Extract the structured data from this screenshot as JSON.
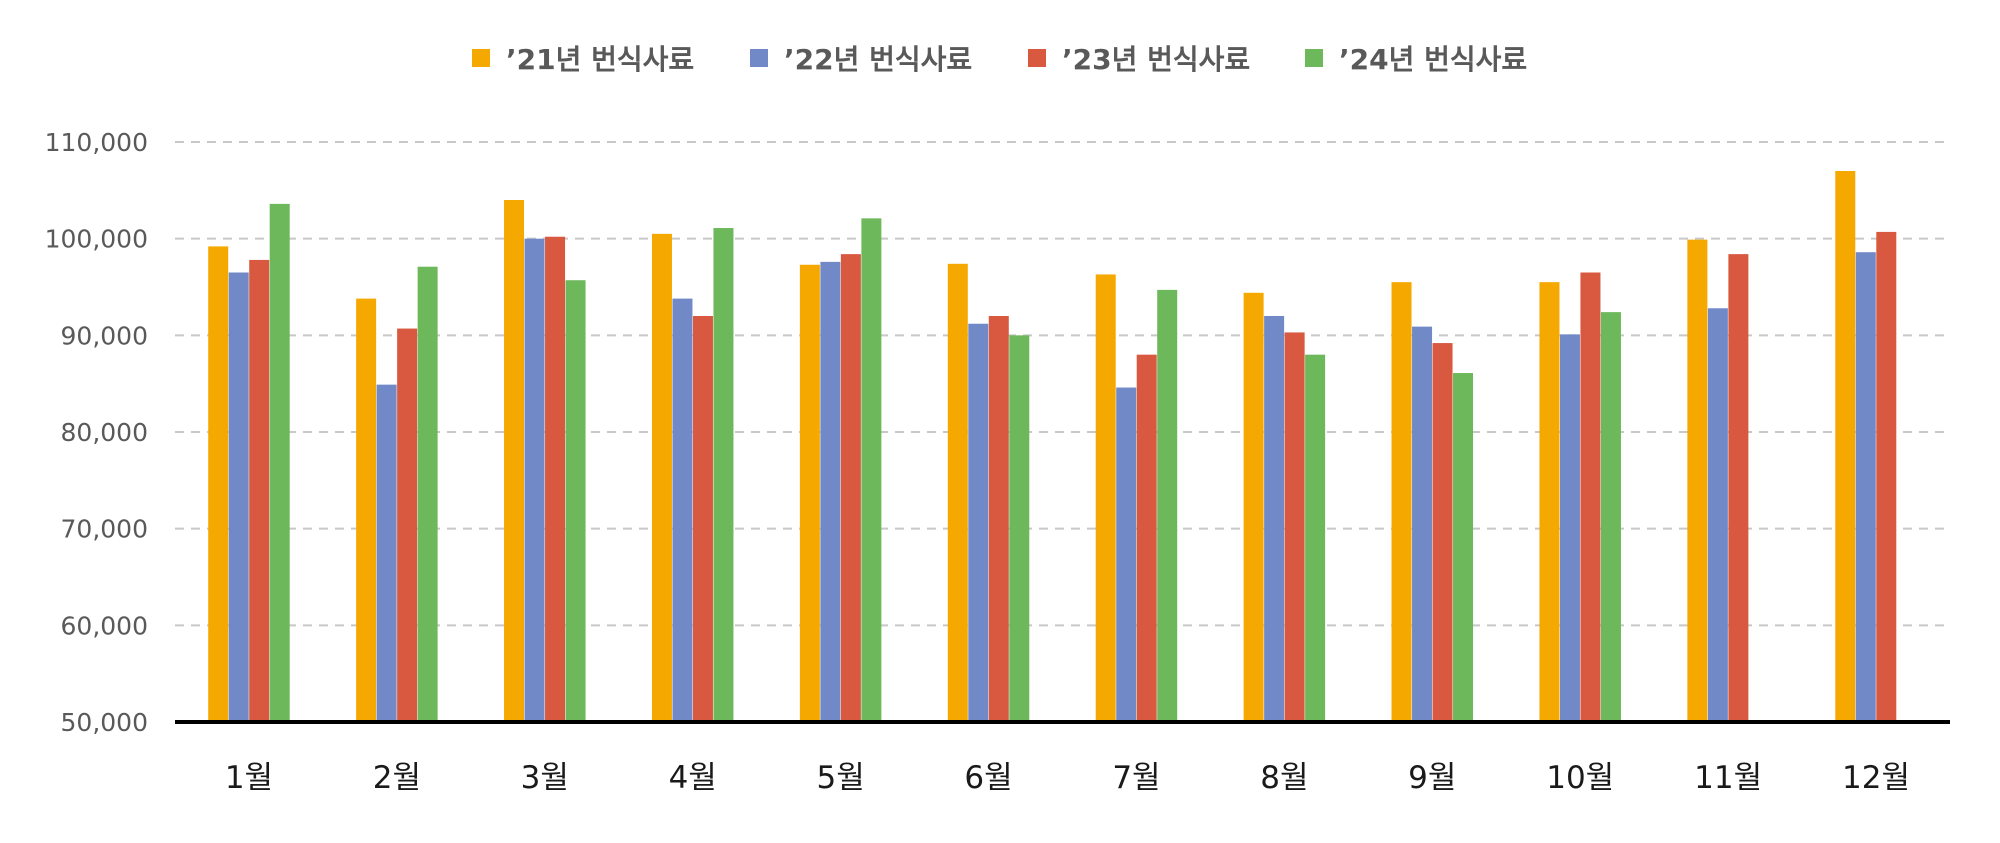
{
  "chart_data": {
    "type": "bar",
    "title": "",
    "xlabel": "",
    "ylabel": "",
    "categories": [
      "1월",
      "2월",
      "3월",
      "4월",
      "5월",
      "6월",
      "7월",
      "8월",
      "9월",
      "10월",
      "11월",
      "12월"
    ],
    "series": [
      {
        "name": "’21년 번식사료",
        "color": "#F5A800",
        "values": [
          99200,
          93800,
          104000,
          100500,
          97300,
          97400,
          96300,
          94400,
          95500,
          95500,
          99900,
          107000
        ]
      },
      {
        "name": "’22년 번식사료",
        "color": "#7189C6",
        "values": [
          96500,
          84900,
          100000,
          93800,
          97600,
          91200,
          84600,
          92000,
          90900,
          90100,
          92800,
          98600
        ]
      },
      {
        "name": "’23년 번식사료",
        "color": "#D8593F",
        "values": [
          97800,
          90700,
          100200,
          92000,
          98400,
          92000,
          88000,
          90300,
          89200,
          96500,
          98400,
          100700
        ]
      },
      {
        "name": "’24년 번식사료",
        "color": "#6DB85A",
        "values": [
          103600,
          97100,
          95700,
          101100,
          102100,
          90000,
          94700,
          88000,
          86100,
          92400,
          null,
          null
        ]
      }
    ],
    "ylim": [
      50000,
      110000
    ],
    "yticks": [
      "50,000",
      "60,000",
      "70,000",
      "80,000",
      "90,000",
      "100,000",
      "110,000"
    ],
    "grid": true,
    "legend_position": "top-center"
  }
}
